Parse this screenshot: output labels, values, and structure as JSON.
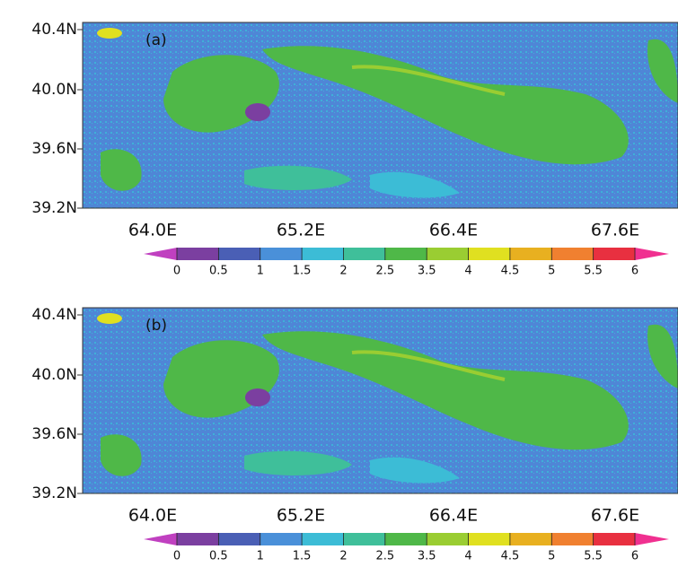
{
  "panels": [
    {
      "label": "(a)",
      "lat_labels": [
        "40.4N",
        "40.0N",
        "39.6N",
        "39.2N"
      ],
      "lon_labels": [
        "64.0E",
        "65.2E",
        "66.4E",
        "67.6E"
      ],
      "colorbar_ticks": [
        0,
        0.5,
        1,
        1.5,
        2,
        2.5,
        3.5,
        4,
        4.5,
        5,
        5.5,
        6
      ]
    },
    {
      "label": "(b)",
      "lat_labels": [
        "40.4N",
        "40.0N",
        "39.6N",
        "39.2N"
      ],
      "lon_labels": [
        "64.0E",
        "65.2E",
        "66.4E",
        "67.6E"
      ],
      "colorbar_ticks": [
        0,
        0.5,
        1,
        1.5,
        2,
        2.5,
        3.5,
        4,
        4.5,
        5,
        5.5,
        6
      ]
    }
  ]
}
